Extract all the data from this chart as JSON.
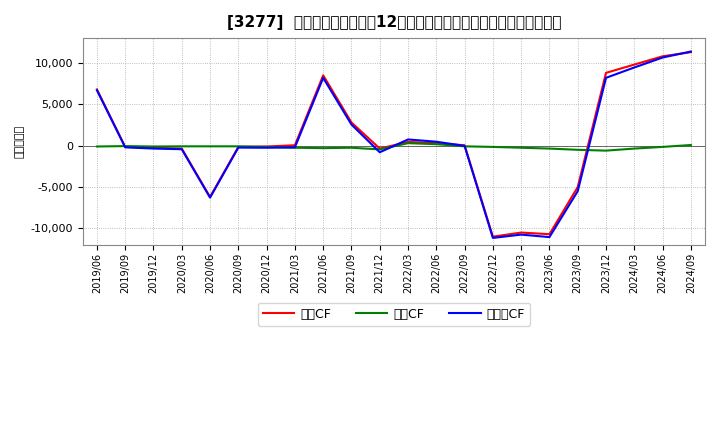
{
  "title": "[3277]  キャッシュフローの12か月移動合計の対前年同期増減額の推移",
  "ylabel": "（百万円）",
  "background_color": "#ffffff",
  "plot_background_color": "#ffffff",
  "grid_color": "#aaaaaa",
  "x_labels": [
    "2019/06",
    "2019/09",
    "2019/12",
    "2020/03",
    "2020/06",
    "2020/09",
    "2020/12",
    "2021/03",
    "2021/06",
    "2021/09",
    "2021/12",
    "2022/03",
    "2022/06",
    "2022/09",
    "2022/12",
    "2023/03",
    "2023/06",
    "2023/09",
    "2023/12",
    "2024/03",
    "2024/06",
    "2024/09"
  ],
  "eigyo_cf": [
    6800,
    -150,
    -250,
    -350,
    -6200,
    -150,
    -100,
    50,
    8500,
    2800,
    -350,
    450,
    300,
    50,
    -11000,
    -10500,
    -10700,
    -5000,
    8800,
    9800,
    10800,
    11300
  ],
  "toshi_cf": [
    -100,
    -50,
    -100,
    -80,
    -80,
    -80,
    -150,
    -250,
    -300,
    -250,
    -450,
    300,
    180,
    -80,
    -150,
    -250,
    -350,
    -500,
    -600,
    -350,
    -150,
    80
  ],
  "free_cf": [
    6700,
    -200,
    -350,
    -430,
    -6280,
    -230,
    -250,
    -200,
    8200,
    2550,
    -800,
    750,
    480,
    -30,
    -11150,
    -10750,
    -11050,
    -5500,
    8200,
    9450,
    10650,
    11380
  ],
  "eigyo_color": "#ff0000",
  "toshi_color": "#008000",
  "free_color": "#0000ff",
  "ylim": [
    -12000,
    13000
  ],
  "yticks": [
    -10000,
    -5000,
    0,
    5000,
    10000
  ],
  "legend_labels": [
    "営業CF",
    "投資CF",
    "フリーCF"
  ]
}
